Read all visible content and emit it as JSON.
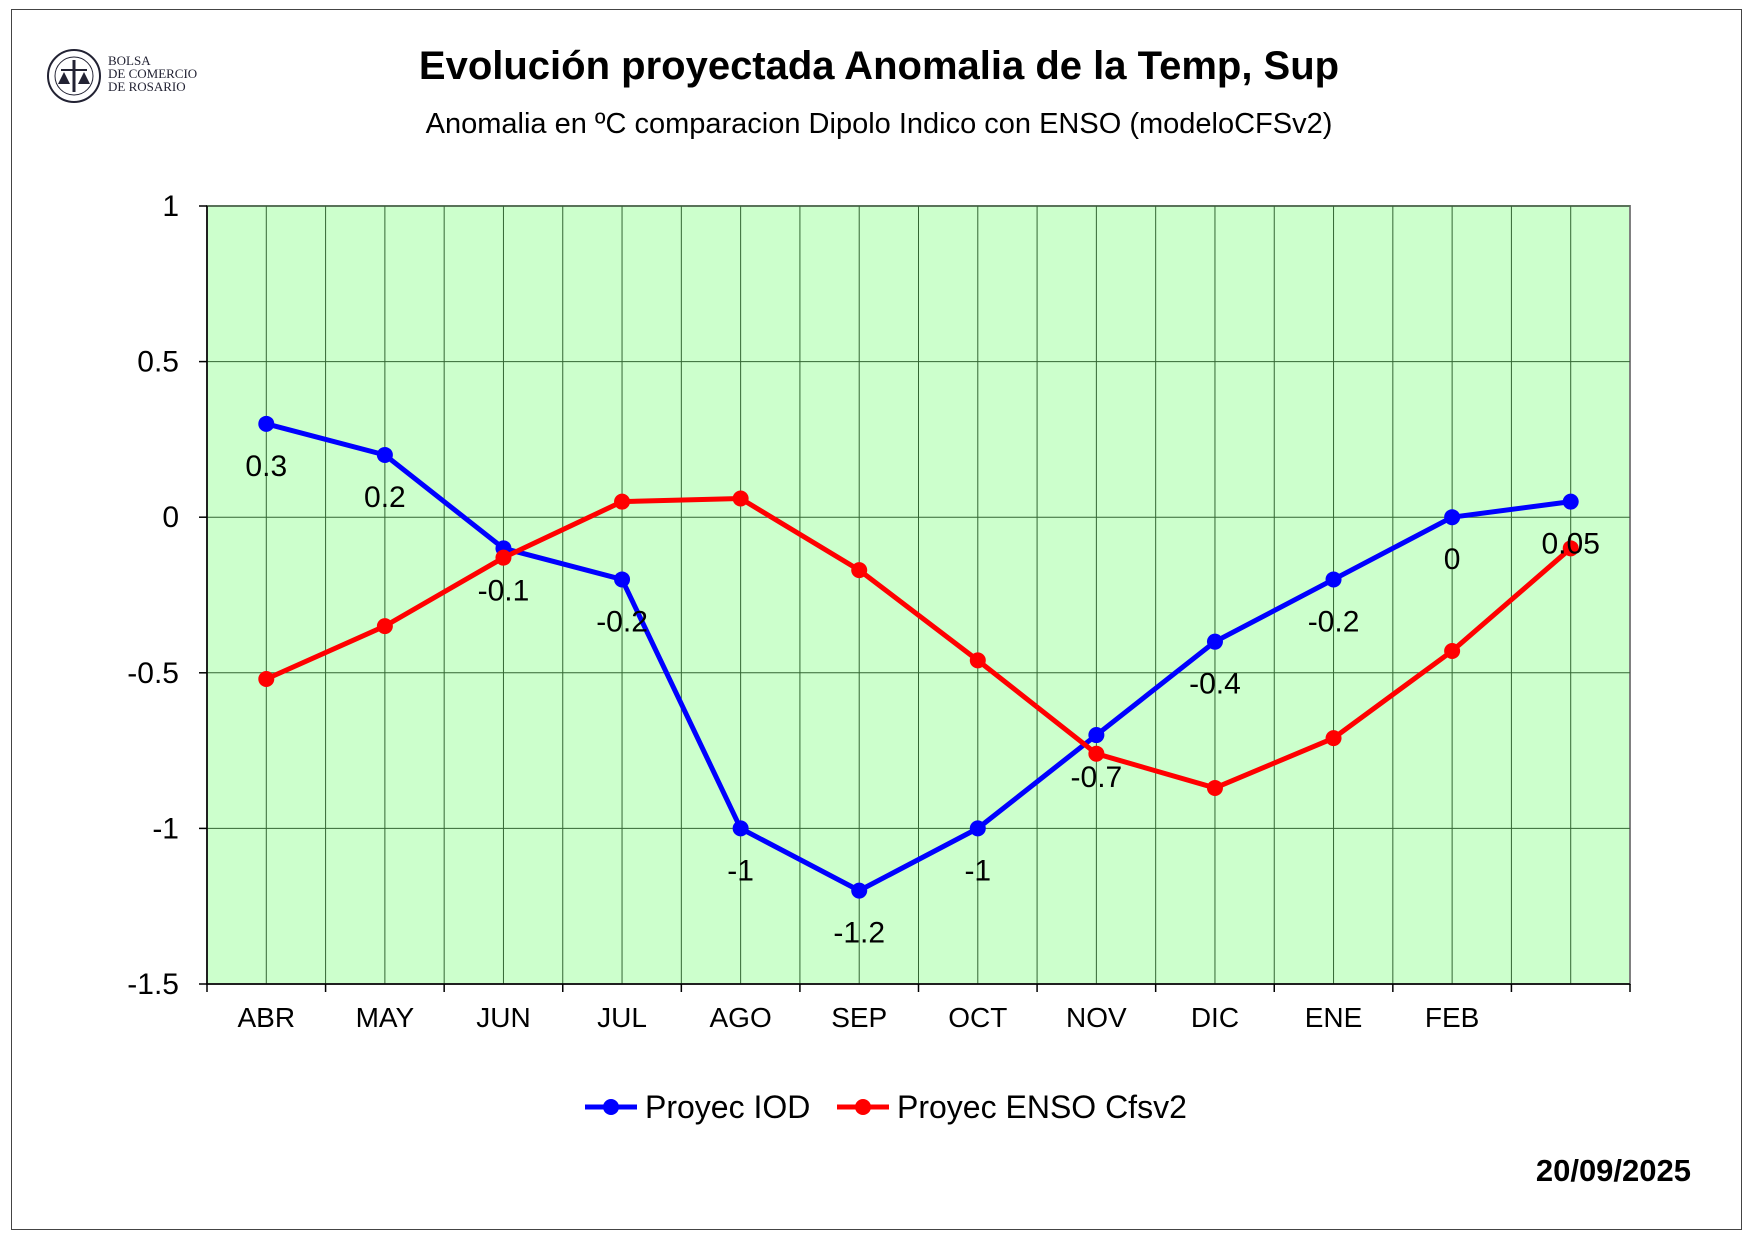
{
  "logo": {
    "lines": [
      "BOLSA",
      "DE COMERCIO",
      "DE ROSARIO"
    ]
  },
  "date": "20/09/2025",
  "chart_data": {
    "type": "line",
    "title": "Evolución proyectada Anomalia de la Temp, Sup",
    "subtitle": "Anomalia en ºC comparacion Dipolo Indico con ENSO (modeloCFSv2)",
    "categories": [
      "ABR",
      "MAY",
      "JUN",
      "JUL",
      "AGO",
      "SEP",
      "OCT",
      "NOV",
      "DIC",
      "ENE",
      "FEB",
      ""
    ],
    "ylim": [
      -1.5,
      1
    ],
    "yticks": [
      "1",
      "0.5",
      "0",
      "-0.5",
      "-1",
      "-1.5"
    ],
    "ytick_values": [
      1,
      0.5,
      0,
      -0.5,
      -1,
      -1.5
    ],
    "grid": true,
    "background_color": "#ccffcc",
    "legend_position": "bottom",
    "series": [
      {
        "name": "Proyec IOD",
        "color": "#0000ff",
        "values": [
          0.3,
          0.2,
          -0.1,
          -0.2,
          -1,
          -1.2,
          -1,
          -0.7,
          -0.4,
          -0.2,
          0,
          0.05
        ],
        "labels": [
          "0.3",
          "0.2",
          "-0.1",
          "-0.2",
          "-1",
          "-1.2",
          "-1",
          "-0.7",
          "-0.4",
          "-0.2",
          "0",
          "0.05"
        ]
      },
      {
        "name": "Proyec ENSO Cfsv2",
        "color": "#ff0000",
        "values": [
          -0.52,
          -0.35,
          -0.13,
          0.05,
          0.06,
          -0.17,
          -0.46,
          -0.76,
          -0.87,
          -0.71,
          -0.43,
          -0.1
        ]
      }
    ]
  }
}
